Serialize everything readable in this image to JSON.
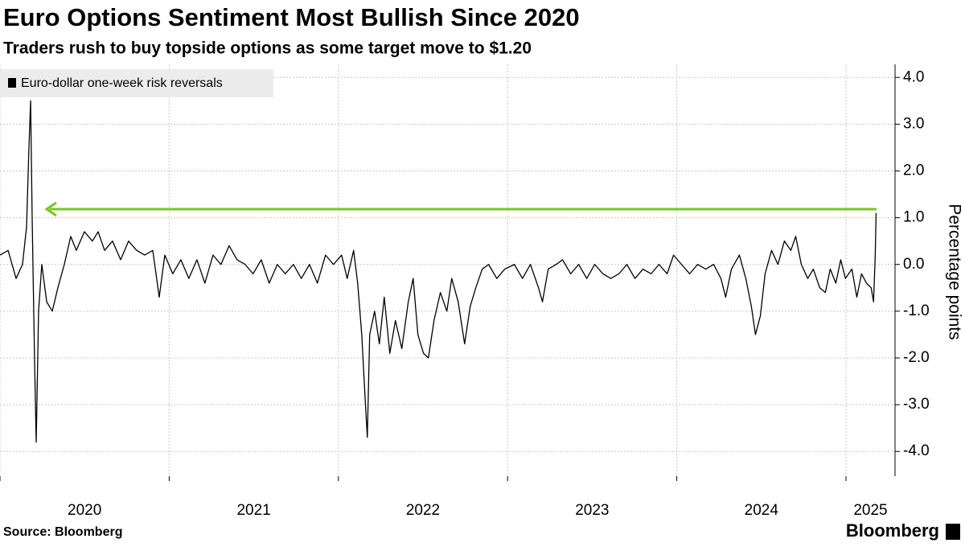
{
  "chart_data": {
    "type": "line",
    "title": "Euro Options Sentiment Most Bullish Since 2020",
    "subtitle": "Traders rush to buy topside options as some target move to $1.20",
    "y_label": "Percentage points",
    "source": "Source: Bloomberg",
    "brand": "Bloomberg",
    "legend": "top-left",
    "grid": true,
    "x": [
      2020.0,
      2020.048,
      2020.095,
      2020.133,
      2020.157,
      2020.171,
      2020.181,
      2020.19,
      2020.204,
      2020.214,
      2020.228,
      2020.247,
      2020.276,
      2020.309,
      2020.342,
      2020.38,
      2020.418,
      2020.451,
      2020.499,
      2020.546,
      2020.58,
      2020.618,
      2020.665,
      2020.713,
      2020.76,
      2020.808,
      2020.855,
      2020.903,
      2020.941,
      2020.974,
      2021.021,
      2021.069,
      2021.116,
      2021.164,
      2021.211,
      2021.259,
      2021.306,
      2021.354,
      2021.401,
      2021.449,
      2021.496,
      2021.544,
      2021.591,
      2021.639,
      2021.686,
      2021.734,
      2021.781,
      2021.829,
      2021.876,
      2021.924,
      2021.971,
      2022.019,
      2022.052,
      2022.09,
      2022.114,
      2022.138,
      2022.157,
      2022.171,
      2022.185,
      2022.214,
      2022.242,
      2022.271,
      2022.304,
      2022.337,
      2022.375,
      2022.413,
      2022.442,
      2022.47,
      2022.503,
      2022.532,
      2022.565,
      2022.603,
      2022.641,
      2022.67,
      2022.708,
      2022.746,
      2022.779,
      2022.812,
      2022.85,
      2022.888,
      2022.936,
      2022.983,
      2023.04,
      2023.088,
      2023.135,
      2023.183,
      2023.206,
      2023.24,
      2023.287,
      2023.325,
      2023.373,
      2023.42,
      2023.468,
      2023.515,
      2023.563,
      2023.61,
      2023.658,
      2023.705,
      2023.753,
      2023.8,
      2023.848,
      2023.895,
      2023.943,
      2023.981,
      2024.028,
      2024.076,
      2024.123,
      2024.171,
      2024.218,
      2024.261,
      2024.289,
      2024.323,
      2024.37,
      2024.408,
      2024.441,
      2024.465,
      2024.494,
      2024.522,
      2024.56,
      2024.598,
      2024.636,
      2024.674,
      2024.703,
      2024.736,
      2024.774,
      2024.807,
      2024.845,
      2024.878,
      2024.907,
      2024.94,
      2024.969,
      2024.997,
      2025.035,
      2025.064,
      2025.092,
      2025.121,
      2025.149,
      2025.163,
      2025.173,
      2025.178
    ],
    "series": [
      {
        "name": "Euro-dollar one-week risk reversals",
        "color": "#000000",
        "values": [
          0.2,
          0.3,
          -0.3,
          0.0,
          0.8,
          2.5,
          3.5,
          1.0,
          -2.0,
          -3.8,
          -1.0,
          0.0,
          -0.8,
          -1.0,
          -0.5,
          0.0,
          0.6,
          0.3,
          0.7,
          0.5,
          0.7,
          0.3,
          0.5,
          0.1,
          0.5,
          0.3,
          0.2,
          0.3,
          -0.7,
          0.2,
          -0.2,
          0.1,
          -0.3,
          0.1,
          -0.4,
          0.2,
          0.0,
          0.4,
          0.1,
          0.0,
          -0.2,
          0.1,
          -0.4,
          0.0,
          -0.2,
          0.0,
          -0.3,
          0.0,
          -0.4,
          0.2,
          0.0,
          0.2,
          -0.3,
          0.3,
          -0.4,
          -1.5,
          -2.8,
          -3.7,
          -1.5,
          -1.0,
          -1.7,
          -0.7,
          -1.9,
          -1.2,
          -1.8,
          -0.8,
          -0.3,
          -1.5,
          -1.9,
          -2.0,
          -1.2,
          -0.6,
          -1.0,
          -0.3,
          -0.8,
          -1.7,
          -0.9,
          -0.5,
          -0.1,
          0.0,
          -0.3,
          -0.1,
          0.0,
          -0.3,
          0.0,
          -0.5,
          -0.8,
          -0.1,
          0.0,
          0.1,
          -0.2,
          0.0,
          -0.3,
          0.0,
          -0.2,
          -0.3,
          -0.2,
          0.0,
          -0.3,
          -0.1,
          -0.2,
          0.0,
          -0.2,
          0.2,
          0.0,
          -0.2,
          0.0,
          -0.1,
          0.0,
          -0.3,
          -0.7,
          -0.1,
          0.2,
          -0.3,
          -0.9,
          -1.5,
          -1.1,
          -0.2,
          0.3,
          0.0,
          0.5,
          0.3,
          0.6,
          0.0,
          -0.3,
          -0.1,
          -0.5,
          -0.6,
          -0.1,
          -0.4,
          0.1,
          -0.3,
          -0.1,
          -0.7,
          -0.2,
          -0.4,
          -0.5,
          -0.8,
          0.2,
          1.1
        ]
      }
    ],
    "xlim": [
      2020,
      2025.29
    ],
    "xticks": [
      2020,
      2021,
      2022,
      2023,
      2024,
      2025
    ],
    "ylim": [
      -4.53,
      4.28
    ],
    "yticks": [
      {
        "value": -4,
        "label": "-4.0"
      },
      {
        "value": -3,
        "label": "-3.0"
      },
      {
        "value": -2,
        "label": "-2.0"
      },
      {
        "value": -1,
        "label": "-1.0"
      },
      {
        "value": 0,
        "label": "0.0"
      },
      {
        "value": 1,
        "label": "1.0"
      },
      {
        "value": 2,
        "label": "2.0"
      },
      {
        "value": 3,
        "label": "3.0"
      },
      {
        "value": 4,
        "label": "4.0"
      }
    ]
  }
}
